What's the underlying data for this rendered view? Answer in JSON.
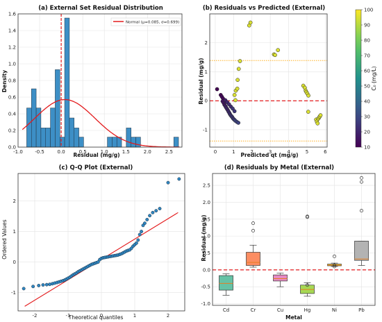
{
  "chart_data": [
    {
      "type": "histogram",
      "title": "(a) External Set Residual Distribution",
      "xlabel": "Residual (mg/g)",
      "ylabel": "Density",
      "xlim": [
        -1.0,
        2.8
      ],
      "ylim": [
        0,
        1.6
      ],
      "xticks": [
        "-1.0",
        "-0.5",
        "0.0",
        "0.5",
        "1.0",
        "1.5",
        "2.0",
        "2.5"
      ],
      "yticks": [
        "0.0",
        "0.2",
        "0.4",
        "0.6",
        "0.8",
        "1.0",
        "1.2",
        "1.4",
        "1.6"
      ],
      "bin_edges": [
        -0.8,
        -0.69,
        -0.58,
        -0.47,
        -0.36,
        -0.25,
        -0.14,
        -0.03,
        0.08,
        0.19,
        0.3,
        0.41,
        0.52,
        0.63,
        0.74,
        0.85,
        0.96,
        1.07,
        1.18,
        1.29,
        1.4,
        1.51,
        1.62,
        1.73,
        1.84,
        1.95,
        2.06,
        2.17,
        2.28,
        2.39,
        2.5,
        2.61,
        2.72
      ],
      "density": [
        0.47,
        0.7,
        0.47,
        0.23,
        0.23,
        0.47,
        0.93,
        0.12,
        1.55,
        0.35,
        0.23,
        0.12,
        0.0,
        0.0,
        0.0,
        0.0,
        0.0,
        0.12,
        0.12,
        0.12,
        0.0,
        0.23,
        0.12,
        0.12,
        0.0,
        0.0,
        0.0,
        0.0,
        0.0,
        0.0,
        0.0,
        0.12
      ],
      "normal_fit": {
        "label": "Normal (μ=0.085, σ=0.699)",
        "mu": 0.085,
        "sigma": 0.699,
        "color": "#e31a1c"
      },
      "mean_line": {
        "x": 0.0,
        "color": "#e31a1c",
        "style": "dashed"
      },
      "bar_color": "#3d8fc6"
    },
    {
      "type": "scatter",
      "title": "(b) Residuals vs Predicted (External)",
      "xlabel": "Predicted qt (mg/g)",
      "ylabel": "Residual (mg/g)",
      "xlim": [
        -0.3,
        6.1
      ],
      "ylim": [
        -1.6,
        3.0
      ],
      "xticks": [
        "0",
        "1",
        "2",
        "3",
        "4",
        "5",
        "6"
      ],
      "yticks": [
        "-1",
        "0",
        "1",
        "2"
      ],
      "hlines": [
        {
          "y": 0,
          "style": "dashed",
          "color": "#e31a1c"
        },
        {
          "y": 1.39,
          "style": "dotted",
          "color": "#ffa500"
        },
        {
          "y": -1.39,
          "style": "dotted",
          "color": "#ffa500"
        }
      ],
      "colorbar": {
        "label": "C₀ (mg/L)",
        "min": 10,
        "max": 100,
        "ticks": [
          "10",
          "20",
          "30",
          "40",
          "50",
          "60",
          "70",
          "80",
          "90",
          "100"
        ],
        "colormap": "viridis"
      },
      "points": [
        {
          "x": 0.1,
          "y": 0.4,
          "c": 10
        },
        {
          "x": 0.3,
          "y": 0.2,
          "c": 10
        },
        {
          "x": 0.36,
          "y": 0.14,
          "c": 12
        },
        {
          "x": 0.42,
          "y": 0.08,
          "c": 12
        },
        {
          "x": 0.4,
          "y": -0.02,
          "c": 15
        },
        {
          "x": 0.46,
          "y": -0.08,
          "c": 15
        },
        {
          "x": 0.5,
          "y": -0.14,
          "c": 15
        },
        {
          "x": 0.55,
          "y": -0.18,
          "c": 18
        },
        {
          "x": 0.58,
          "y": -0.22,
          "c": 18
        },
        {
          "x": 0.62,
          "y": -0.26,
          "c": 20
        },
        {
          "x": 0.66,
          "y": -0.3,
          "c": 20
        },
        {
          "x": 0.7,
          "y": -0.34,
          "c": 20
        },
        {
          "x": 0.73,
          "y": -0.38,
          "c": 22
        },
        {
          "x": 0.77,
          "y": -0.42,
          "c": 22
        },
        {
          "x": 0.8,
          "y": -0.46,
          "c": 22
        },
        {
          "x": 0.84,
          "y": -0.5,
          "c": 25
        },
        {
          "x": 0.88,
          "y": -0.53,
          "c": 25
        },
        {
          "x": 0.92,
          "y": -0.56,
          "c": 25
        },
        {
          "x": 0.96,
          "y": -0.6,
          "c": 25
        },
        {
          "x": 1.0,
          "y": -0.63,
          "c": 25
        },
        {
          "x": 1.05,
          "y": -0.66,
          "c": 28
        },
        {
          "x": 1.1,
          "y": -0.69,
          "c": 28
        },
        {
          "x": 1.18,
          "y": -0.73,
          "c": 28
        },
        {
          "x": 1.26,
          "y": -0.76,
          "c": 28
        },
        {
          "x": 0.55,
          "y": 0.02,
          "c": 18
        },
        {
          "x": 0.65,
          "y": -0.05,
          "c": 20
        },
        {
          "x": 0.75,
          "y": -0.12,
          "c": 22
        },
        {
          "x": 0.85,
          "y": -0.2,
          "c": 22
        },
        {
          "x": 0.95,
          "y": -0.27,
          "c": 25
        },
        {
          "x": 1.05,
          "y": -0.36,
          "c": 25
        },
        {
          "x": 1.1,
          "y": 0.02,
          "c": 95
        },
        {
          "x": 1.05,
          "y": 0.2,
          "c": 95
        },
        {
          "x": 1.12,
          "y": 0.35,
          "c": 95
        },
        {
          "x": 1.2,
          "y": 0.42,
          "c": 95
        },
        {
          "x": 1.22,
          "y": 0.72,
          "c": 95
        },
        {
          "x": 1.28,
          "y": 1.1,
          "c": 95
        },
        {
          "x": 1.35,
          "y": 1.37,
          "c": 95
        },
        {
          "x": 1.85,
          "y": 2.6,
          "c": 95
        },
        {
          "x": 1.92,
          "y": 2.7,
          "c": 95
        },
        {
          "x": 3.2,
          "y": 1.6,
          "c": 95
        },
        {
          "x": 3.26,
          "y": 1.58,
          "c": 95
        },
        {
          "x": 3.42,
          "y": 1.75,
          "c": 95
        },
        {
          "x": 4.8,
          "y": 0.52,
          "c": 95
        },
        {
          "x": 4.88,
          "y": 0.45,
          "c": 95
        },
        {
          "x": 4.93,
          "y": 0.35,
          "c": 95
        },
        {
          "x": 4.97,
          "y": 0.3,
          "c": 95
        },
        {
          "x": 5.02,
          "y": 0.25,
          "c": 95
        },
        {
          "x": 5.08,
          "y": 0.18,
          "c": 95
        },
        {
          "x": 5.07,
          "y": -0.38,
          "c": 95
        },
        {
          "x": 5.5,
          "y": -0.65,
          "c": 95
        },
        {
          "x": 5.54,
          "y": -0.72,
          "c": 95
        },
        {
          "x": 5.58,
          "y": -0.78,
          "c": 95
        },
        {
          "x": 5.62,
          "y": -0.62,
          "c": 95
        },
        {
          "x": 5.66,
          "y": -0.58,
          "c": 95
        },
        {
          "x": 5.7,
          "y": -0.54,
          "c": 95
        },
        {
          "x": 5.74,
          "y": -0.5,
          "c": 95
        }
      ]
    },
    {
      "type": "scatter",
      "title": "(c) Q-Q Plot (External)",
      "xlabel": "Theoretical quantiles",
      "ylabel": "Ordered Values",
      "xlim": [
        -2.5,
        2.5
      ],
      "ylim": [
        -1.6,
        2.9
      ],
      "xticks": [
        "-2",
        "-1",
        "0",
        "1",
        "2"
      ],
      "yticks": [
        "-1",
        "0",
        "1",
        "2"
      ],
      "reference_line": {
        "x0": -2.3,
        "y0": -1.45,
        "x1": 2.3,
        "y1": 1.62,
        "color": "#e31a1c"
      },
      "points": [
        {
          "x": -2.33,
          "y": -0.87
        },
        {
          "x": -2.05,
          "y": -0.8
        },
        {
          "x": -1.88,
          "y": -0.77
        },
        {
          "x": -1.75,
          "y": -0.75
        },
        {
          "x": -1.64,
          "y": -0.74
        },
        {
          "x": -1.55,
          "y": -0.73
        },
        {
          "x": -1.47,
          "y": -0.71
        },
        {
          "x": -1.4,
          "y": -0.69
        },
        {
          "x": -1.33,
          "y": -0.67
        },
        {
          "x": -1.27,
          "y": -0.65
        },
        {
          "x": -1.21,
          "y": -0.63
        },
        {
          "x": -1.15,
          "y": -0.61
        },
        {
          "x": -1.1,
          "y": -0.59
        },
        {
          "x": -1.05,
          "y": -0.56
        },
        {
          "x": -1.0,
          "y": -0.53
        },
        {
          "x": -0.95,
          "y": -0.5
        },
        {
          "x": -0.9,
          "y": -0.46
        },
        {
          "x": -0.85,
          "y": -0.42
        },
        {
          "x": -0.8,
          "y": -0.39
        },
        {
          "x": -0.75,
          "y": -0.36
        },
        {
          "x": -0.7,
          "y": -0.32
        },
        {
          "x": -0.65,
          "y": -0.29
        },
        {
          "x": -0.6,
          "y": -0.26
        },
        {
          "x": -0.55,
          "y": -0.23
        },
        {
          "x": -0.5,
          "y": -0.2
        },
        {
          "x": -0.45,
          "y": -0.17
        },
        {
          "x": -0.4,
          "y": -0.14
        },
        {
          "x": -0.35,
          "y": -0.11
        },
        {
          "x": -0.3,
          "y": -0.08
        },
        {
          "x": -0.25,
          "y": -0.06
        },
        {
          "x": -0.2,
          "y": -0.04
        },
        {
          "x": -0.15,
          "y": -0.02
        },
        {
          "x": -0.1,
          "y": 0.0
        },
        {
          "x": -0.05,
          "y": 0.08
        },
        {
          "x": 0.0,
          "y": 0.12
        },
        {
          "x": 0.05,
          "y": 0.14
        },
        {
          "x": 0.1,
          "y": 0.15
        },
        {
          "x": 0.15,
          "y": 0.16
        },
        {
          "x": 0.2,
          "y": 0.17
        },
        {
          "x": 0.25,
          "y": 0.18
        },
        {
          "x": 0.3,
          "y": 0.19
        },
        {
          "x": 0.35,
          "y": 0.2
        },
        {
          "x": 0.4,
          "y": 0.21
        },
        {
          "x": 0.45,
          "y": 0.22
        },
        {
          "x": 0.5,
          "y": 0.23
        },
        {
          "x": 0.55,
          "y": 0.25
        },
        {
          "x": 0.6,
          "y": 0.27
        },
        {
          "x": 0.65,
          "y": 0.3
        },
        {
          "x": 0.7,
          "y": 0.33
        },
        {
          "x": 0.75,
          "y": 0.36
        },
        {
          "x": 0.8,
          "y": 0.38
        },
        {
          "x": 0.85,
          "y": 0.4
        },
        {
          "x": 0.9,
          "y": 0.45
        },
        {
          "x": 0.95,
          "y": 0.52
        },
        {
          "x": 1.0,
          "y": 0.57
        },
        {
          "x": 1.05,
          "y": 0.62
        },
        {
          "x": 1.1,
          "y": 0.72
        },
        {
          "x": 1.15,
          "y": 0.9
        },
        {
          "x": 1.2,
          "y": 1.0
        },
        {
          "x": 1.25,
          "y": 1.2
        },
        {
          "x": 1.3,
          "y": 1.27
        },
        {
          "x": 1.37,
          "y": 1.39
        },
        {
          "x": 1.45,
          "y": 1.52
        },
        {
          "x": 1.54,
          "y": 1.62
        },
        {
          "x": 1.64,
          "y": 1.68
        },
        {
          "x": 1.75,
          "y": 1.75
        },
        {
          "x": 2.0,
          "y": 2.6
        },
        {
          "x": 2.33,
          "y": 2.72
        }
      ]
    },
    {
      "type": "boxplot",
      "title": "(d) Residuals by Metal (External)",
      "xlabel": "Metal",
      "ylabel": "Residual (mg/g)",
      "ylim": [
        -1.05,
        2.85
      ],
      "yticks": [
        "-1.0",
        "-0.5",
        "0.0",
        "0.5",
        "1.0",
        "1.5",
        "2.0",
        "2.5"
      ],
      "zero_line": {
        "y": 0,
        "color": "#e31a1c",
        "style": "dashed"
      },
      "categories": [
        "Cd",
        "Cr",
        "Cu",
        "Hg",
        "Ni",
        "Pb"
      ],
      "boxes": [
        {
          "name": "Cd",
          "whisker_low": -0.75,
          "q1": -0.6,
          "median": -0.4,
          "q3": -0.17,
          "whisker_high": -0.12,
          "outliers": [],
          "color": "#66c2a5"
        },
        {
          "name": "Cr",
          "whisker_low": 0.08,
          "q1": 0.13,
          "median": 0.22,
          "q3": 0.52,
          "whisker_high": 0.73,
          "outliers": [
            1.16,
            1.38
          ],
          "color": "#fc8d62"
        },
        {
          "name": "Cu",
          "whisker_low": -0.5,
          "q1": -0.33,
          "median": -0.26,
          "q3": -0.15,
          "whisker_high": -0.1,
          "outliers": [],
          "color": "#e78ac3"
        },
        {
          "name": "Hg",
          "whisker_low": -0.78,
          "q1": -0.7,
          "median": -0.58,
          "q3": -0.45,
          "whisker_high": -0.38,
          "outliers": [
            -0.45,
            1.56,
            1.58
          ],
          "color": "#a6d854"
        },
        {
          "name": "Ni",
          "whisker_low": 0.1,
          "q1": 0.12,
          "median": 0.14,
          "q3": 0.17,
          "whisker_high": 0.2,
          "outliers": [
            0.4,
            0.1,
            0.14
          ],
          "color": "#ffd92f"
        },
        {
          "name": "Pb",
          "whisker_low": 0.13,
          "q1": 0.28,
          "median": 0.32,
          "q3": 0.85,
          "whisker_high": 0.85,
          "outliers": [
            1.75,
            2.6,
            2.72
          ],
          "color": "#b3b3b3"
        }
      ]
    }
  ]
}
